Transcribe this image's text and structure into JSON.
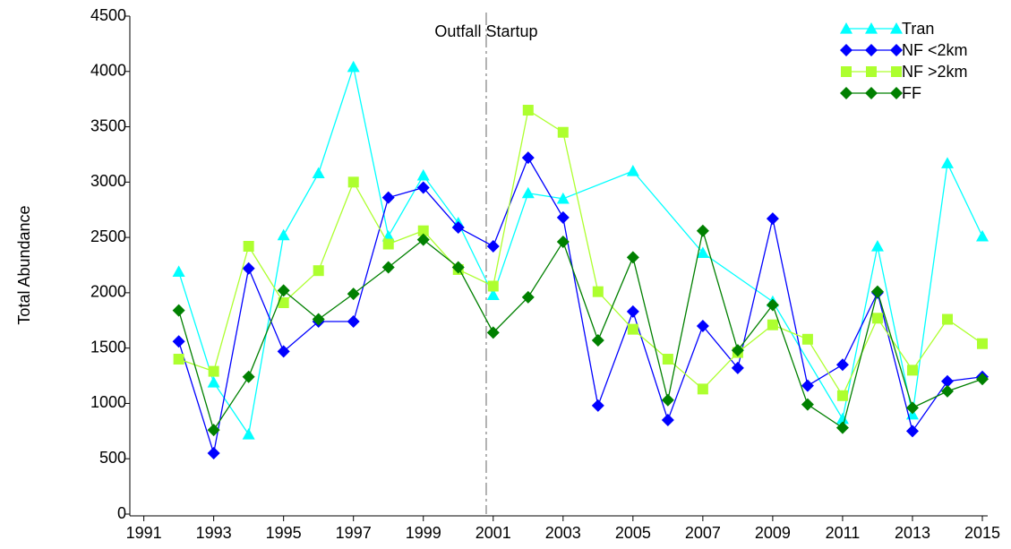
{
  "chart_data": {
    "type": "line",
    "y_label": "Total Abundance",
    "xlim": [
      1990.6,
      2015
    ],
    "xticks": [
      1991,
      1993,
      1995,
      1997,
      1999,
      2001,
      2003,
      2005,
      2007,
      2009,
      2011,
      2013,
      2015
    ],
    "ylim": [
      0,
      4500
    ],
    "yticks": [
      0,
      500,
      1000,
      1500,
      2000,
      2500,
      3000,
      3500,
      4000,
      4500
    ],
    "grid": false,
    "legend": "top-right",
    "annotations": [
      {
        "text": "Outfall Startup",
        "x": 2000.8
      }
    ],
    "series": [
      {
        "name": "Tran",
        "color": "#00ffff",
        "marker": "triangle",
        "x": [
          1992,
          1993,
          1994,
          1995,
          1996,
          1997,
          1998,
          1999,
          2000,
          2001,
          2002,
          2003,
          2005,
          2007,
          2009,
          2011,
          2012,
          2013,
          2014,
          2015
        ],
        "values": [
          2190,
          1190,
          720,
          2520,
          3080,
          4040,
          2510,
          3060,
          2630,
          1980,
          2900,
          2850,
          3100,
          2360,
          1920,
          860,
          2420,
          900,
          3170,
          2510
        ]
      },
      {
        "name": "NF <2km",
        "color": "#0000ff",
        "marker": "diamond",
        "x": [
          1992,
          1993,
          1994,
          1995,
          1996,
          1997,
          1998,
          1999,
          2000,
          2001,
          2002,
          2003,
          2004,
          2005,
          2006,
          2007,
          2008,
          2009,
          2010,
          2011,
          2012,
          2013,
          2014,
          2015
        ],
        "values": [
          1560,
          550,
          2220,
          1470,
          1740,
          1740,
          2860,
          2950,
          2590,
          2420,
          3220,
          2680,
          980,
          1830,
          850,
          1700,
          1320,
          2670,
          1160,
          1350,
          2000,
          750,
          1200,
          1240
        ]
      },
      {
        "name": "NF >2km",
        "color": "#adff2f",
        "marker": "square",
        "x": [
          1992,
          1993,
          1994,
          1995,
          1996,
          1997,
          1998,
          1999,
          2000,
          2001,
          2002,
          2003,
          2004,
          2005,
          2006,
          2007,
          2008,
          2009,
          2010,
          2011,
          2012,
          2013,
          2014,
          2015
        ],
        "values": [
          1400,
          1290,
          2420,
          1910,
          2200,
          3000,
          2440,
          2560,
          2210,
          2060,
          3650,
          3450,
          2010,
          1670,
          1400,
          1130,
          1460,
          1710,
          1580,
          1070,
          1770,
          1300,
          1760,
          1540
        ]
      },
      {
        "name": "FF",
        "color": "#008000",
        "marker": "diamond",
        "x": [
          1992,
          1993,
          1994,
          1995,
          1996,
          1997,
          1998,
          1999,
          2000,
          2001,
          2002,
          2003,
          2004,
          2005,
          2006,
          2007,
          2008,
          2009,
          2010,
          2011,
          2012,
          2013,
          2014,
          2015
        ],
        "values": [
          1840,
          760,
          1240,
          2020,
          1760,
          1990,
          2230,
          2480,
          2230,
          1640,
          1960,
          2460,
          1570,
          2320,
          1030,
          2560,
          1480,
          1890,
          990,
          780,
          2010,
          960,
          1110,
          1220
        ]
      }
    ]
  }
}
